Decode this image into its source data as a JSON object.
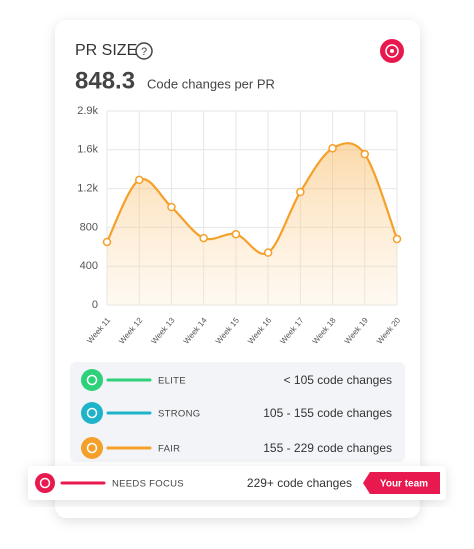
{
  "chart_data": {
    "type": "line",
    "title": "PR SIZE",
    "help": "?",
    "headline": "848.3",
    "subtitle": "Code changes per PR",
    "categories": [
      "Week 11",
      "Week 12",
      "Week 13",
      "Week 14",
      "Week 15",
      "Week 16",
      "Week 17",
      "Week 18",
      "Week 19",
      "Week 20"
    ],
    "series": [
      {
        "name": "PR size",
        "color": "#f5a02a",
        "values": [
          650,
          1290,
          1010,
          690,
          730,
          540,
          1165,
          1650,
          1555,
          680
        ]
      }
    ],
    "ylim": [
      0,
      2900
    ],
    "yticks": [
      0,
      400,
      800,
      {
        "value": 1200,
        "label": "1.2k"
      },
      {
        "value": 1600,
        "label": "1.6k"
      },
      {
        "value": 2900,
        "label": "2.9k"
      }
    ],
    "grid": true
  },
  "tiers": [
    {
      "label": "ELITE",
      "range": "< 105 code changes",
      "color": "#2fd07a"
    },
    {
      "label": "STRONG",
      "range": "105 - 155 code changes",
      "color": "#1fb3c9"
    },
    {
      "label": "FAIR",
      "range": "155 - 229 code changes",
      "color": "#f5a02a"
    },
    {
      "label": "NEEDS FOCUS",
      "range": "229+ code changes",
      "color": "#e8194f"
    }
  ],
  "button": "Your team"
}
